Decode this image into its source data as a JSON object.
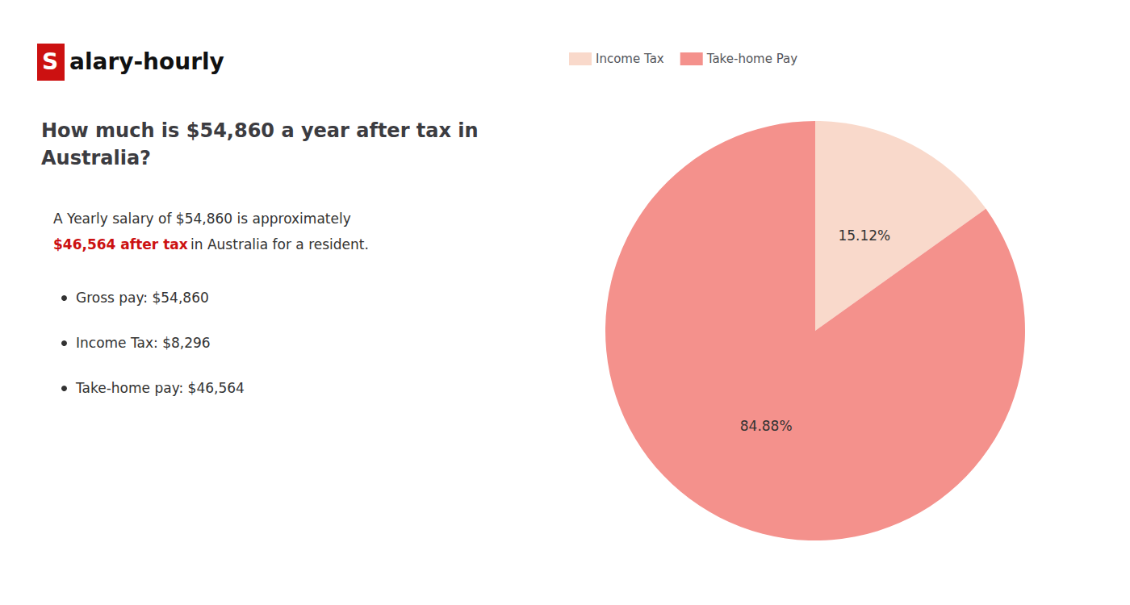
{
  "chart_data": {
    "type": "pie",
    "title": "How much is $54,860 a year after tax in Australia?",
    "categories": [
      "Income Tax",
      "Take-home Pay"
    ],
    "values": [
      15.12,
      84.88
    ],
    "value_labels": [
      "15.12%",
      "84.88%"
    ],
    "colors": [
      "#f9d9cb",
      "#f4918c"
    ],
    "data_labels": true,
    "legend": "upper left",
    "annotations": [
      {
        "text": "S",
        "color": "#cc1111"
      },
      {
        "text": "alary-hourly"
      },
      {
        "text": "A Yearly salary of $54,860 is approximately"
      },
      {
        "text": "$46,564 after tax",
        "color": "#cc1111"
      },
      {
        "text": "in"
      },
      {
        "text": "Australia for a resident."
      },
      {
        "text": "Gross pay: $54,860"
      },
      {
        "text": "Income Tax: $8,296"
      },
      {
        "text": "Take-home pay: $46,564"
      }
    ]
  }
}
